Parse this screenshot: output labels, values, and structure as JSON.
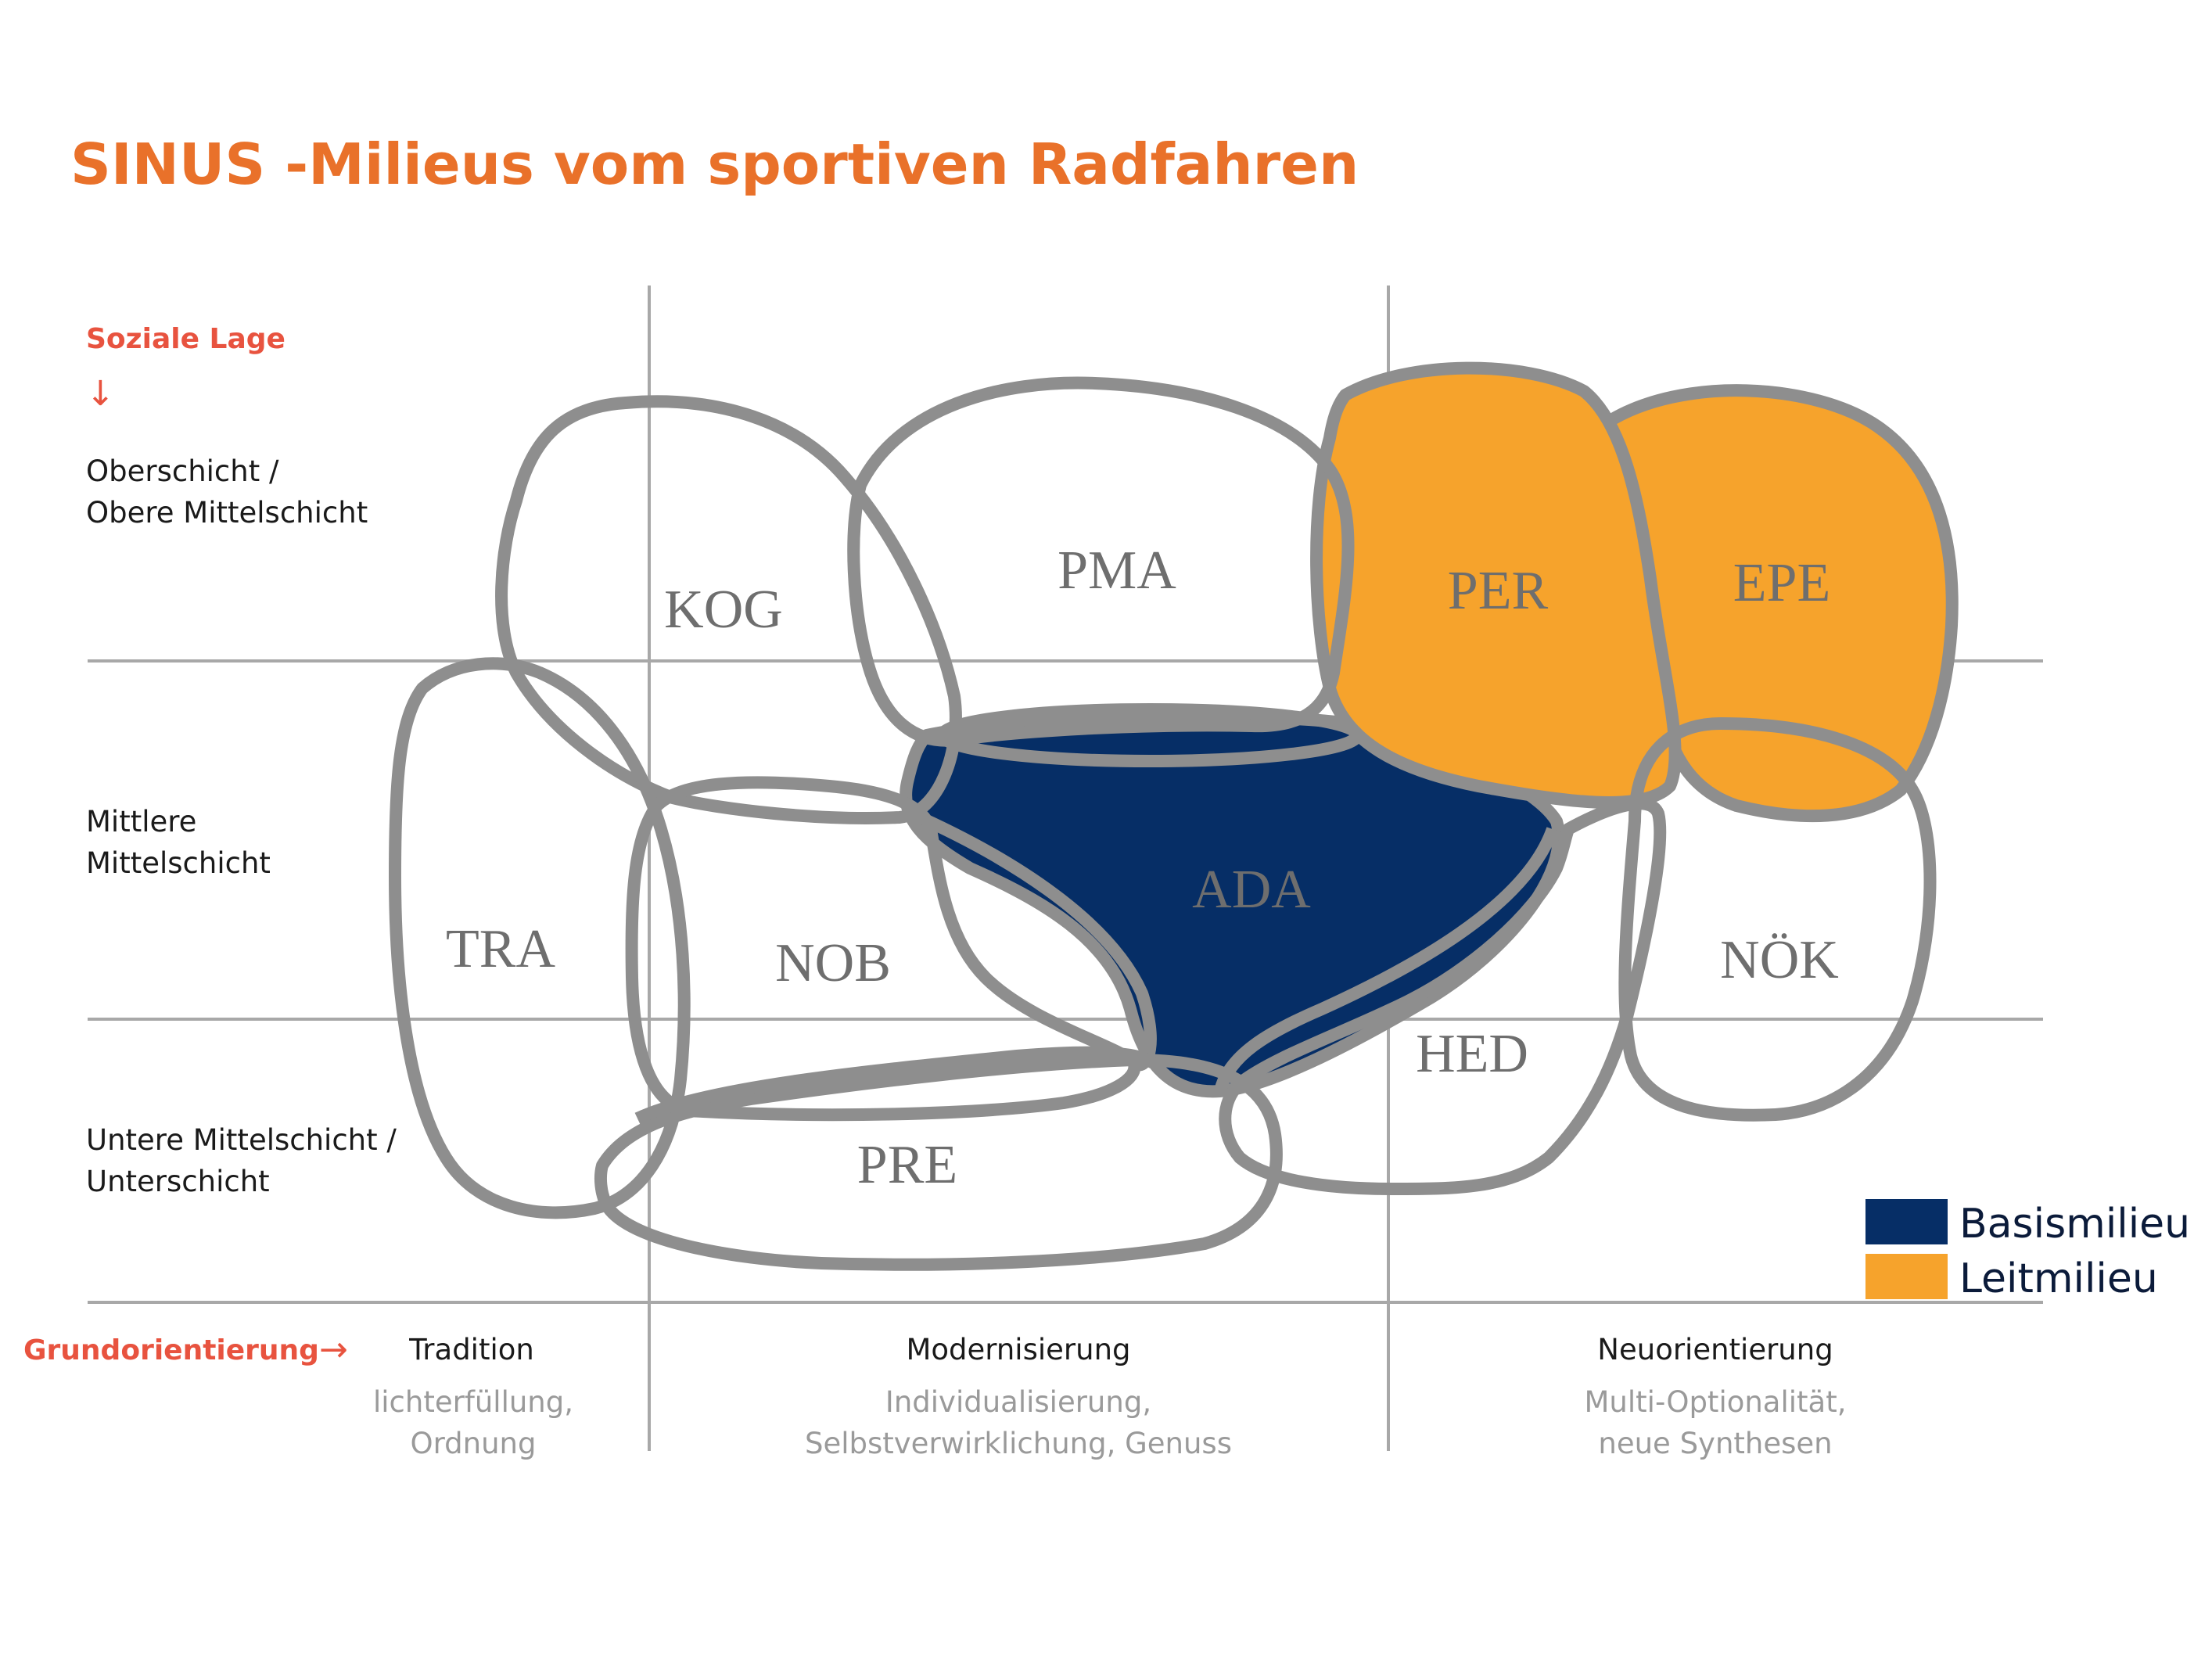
{
  "title": "SINUS -Milieus vom sportiven Radfahren",
  "colors": {
    "title": "#E9712A",
    "axis_label": "#E8533F",
    "outline": "#8E8E8E",
    "grid": "#A8A8A8",
    "basis": "#062E66",
    "leit": "#F6A32C",
    "milieu_text": "#6E6E6E",
    "legend_text": "#0B1B3A",
    "sub_text": "#9A9A9A"
  },
  "y_axis": {
    "label": "Soziale Lage",
    "arrow": "↓",
    "levels": [
      {
        "line1": "Oberschicht /",
        "line2": "Obere Mittelschicht"
      },
      {
        "line1": "Mittlere",
        "line2": "Mittelschicht"
      },
      {
        "line1": "Untere Mittelschicht /",
        "line2": "Unterschicht"
      }
    ]
  },
  "x_axis": {
    "label": "Grundorientierung",
    "arrow": "→",
    "columns": [
      {
        "name": "Tradition",
        "sub1": "lichterfüllung,",
        "sub2": "Ordnung"
      },
      {
        "name": "Modernisierung",
        "sub1": "Individualisierung,",
        "sub2": "Selbstverwirklichung, Genuss"
      },
      {
        "name": "Neuorientierung",
        "sub1": "Multi-Optionalität,",
        "sub2": "neue Synthesen"
      }
    ]
  },
  "milieus": [
    {
      "code": "KOG",
      "type": "none"
    },
    {
      "code": "PMA",
      "type": "none"
    },
    {
      "code": "PER",
      "type": "leit"
    },
    {
      "code": "EPE",
      "type": "leit"
    },
    {
      "code": "TRA",
      "type": "none"
    },
    {
      "code": "NOB",
      "type": "none"
    },
    {
      "code": "ADA",
      "type": "basis"
    },
    {
      "code": "NÖK",
      "type": "none"
    },
    {
      "code": "HED",
      "type": "none"
    },
    {
      "code": "PRE",
      "type": "none"
    }
  ],
  "legend": [
    {
      "label": "Basismilieu",
      "type": "basis"
    },
    {
      "label": "Leitmilieu",
      "type": "leit"
    }
  ]
}
